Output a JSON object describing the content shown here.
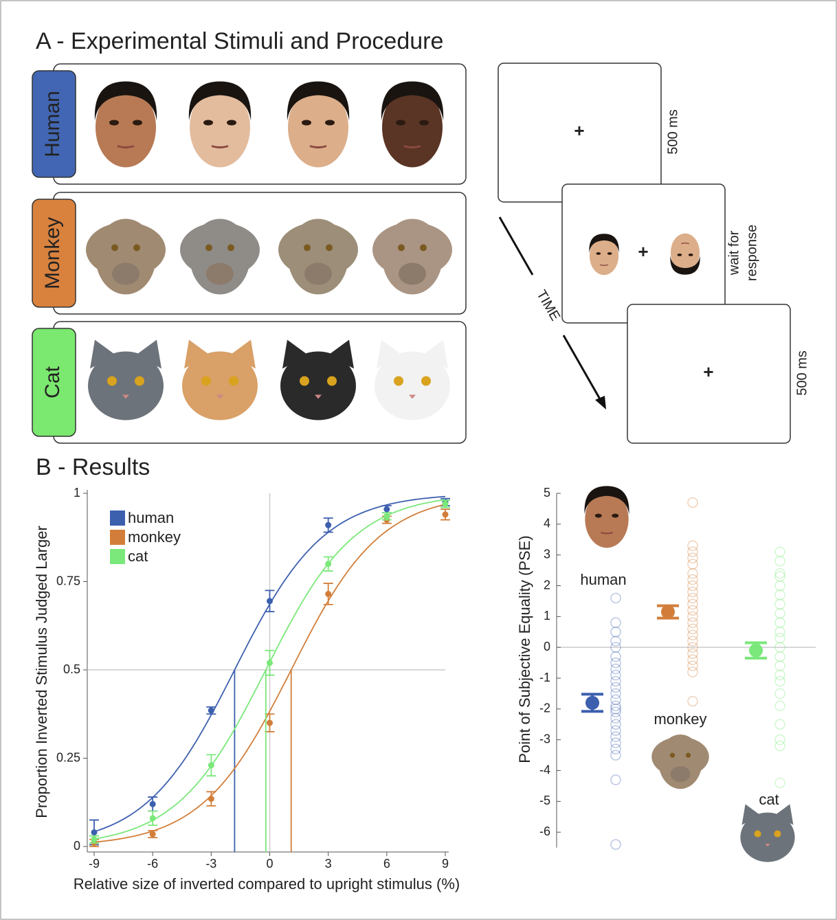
{
  "panel_a": {
    "title": "A - Experimental Stimuli and Procedure",
    "rows": [
      {
        "label": "Human",
        "color": "#4266b3"
      },
      {
        "label": "Monkey",
        "color": "#d9823e"
      },
      {
        "label": "Cat",
        "color": "#7be86f"
      }
    ],
    "procedure": {
      "screens": [
        {
          "symbol": "+",
          "duration": [
            "500 ms"
          ]
        },
        {
          "symbol": "+",
          "duration": [
            "wait for",
            "response"
          ]
        },
        {
          "symbol": "+",
          "duration": [
            "500 ms"
          ]
        }
      ],
      "time_label": "TIME"
    }
  },
  "panel_b": {
    "title": "B - Results"
  },
  "chart_data": [
    {
      "type": "line",
      "xlabel": "Relative size of inverted compared to upright stimulus (%)",
      "ylabel": "Proportion Inverted Stimulus Judged Larger",
      "x": [
        -9,
        -6,
        -3,
        0,
        3,
        6,
        9
      ],
      "xlim": [
        -9,
        9
      ],
      "ylim": [
        0,
        1
      ],
      "xticks": [
        -9,
        -6,
        -3,
        0,
        3,
        6,
        9
      ],
      "yticks": [
        0,
        0.25,
        0.5,
        0.75,
        1
      ],
      "reference_lines": {
        "x": 0,
        "y": 0.5
      },
      "series": [
        {
          "name": "human",
          "color": "#3c5fae",
          "values": [
            0.04,
            0.12,
            0.385,
            0.695,
            0.91,
            0.955,
            0.975
          ],
          "errors": [
            0.035,
            0.02,
            0.01,
            0.03,
            0.02,
            0.01,
            0.01
          ],
          "pse": -1.8,
          "fit_scale": 2.3
        },
        {
          "name": "monkey",
          "color": "#d27e3a",
          "values": [
            0.01,
            0.035,
            0.135,
            0.35,
            0.715,
            0.925,
            0.94
          ],
          "errors": [
            0.01,
            0.01,
            0.02,
            0.025,
            0.03,
            0.01,
            0.015
          ],
          "pse": 1.1,
          "fit_scale": 2.3
        },
        {
          "name": "cat",
          "color": "#7ae87a",
          "values": [
            0.02,
            0.08,
            0.23,
            0.52,
            0.8,
            0.935,
            0.97
          ],
          "errors": [
            0.01,
            0.02,
            0.03,
            0.035,
            0.02,
            0.01,
            0.01
          ],
          "pse": -0.2,
          "fit_scale": 2.3
        }
      ]
    },
    {
      "type": "dot",
      "ylabel": "Point of Subjective Equality (PSE)",
      "ylim": [
        -6.5,
        5
      ],
      "yticks": [
        -6,
        -5,
        -4,
        -3,
        -2,
        -1,
        0,
        1,
        2,
        3,
        4,
        5
      ],
      "reference_lines": {
        "y": 0
      },
      "categories": [
        "human",
        "monkey",
        "cat"
      ],
      "colors": [
        "#3c5fae",
        "#d27e3a",
        "#7ae87a"
      ],
      "values": [
        -1.8,
        1.15,
        -0.1
      ],
      "errors": [
        0.28,
        0.2,
        0.25
      ],
      "points": [
        [
          1.6,
          0.8,
          0.5,
          0.2,
          0,
          -0.3,
          -0.5,
          -0.7,
          -0.9,
          -1.1,
          -1.3,
          -1.5,
          -1.7,
          -1.9,
          -2.0,
          -2.1,
          -2.3,
          -2.5,
          -2.7,
          -2.9,
          -3.1,
          -3.3,
          -3.5,
          -4.3,
          -6.4
        ],
        [
          4.7,
          3.3,
          3.1,
          2.9,
          2.7,
          2.4,
          2.2,
          2.0,
          1.8,
          1.6,
          1.4,
          1.2,
          1.0,
          0.8,
          0.6,
          0.4,
          0.2,
          0,
          -0.2,
          -0.4,
          -0.6,
          -0.8,
          -1.75
        ],
        [
          3.1,
          2.8,
          2.4,
          2.3,
          2.0,
          1.7,
          1.4,
          1.1,
          0.8,
          0.5,
          0.3,
          0,
          -0.3,
          -0.6,
          -0.9,
          -1.1,
          -1.5,
          -1.9,
          -2.5,
          -3.0,
          -3.2,
          -4.4
        ]
      ]
    }
  ]
}
